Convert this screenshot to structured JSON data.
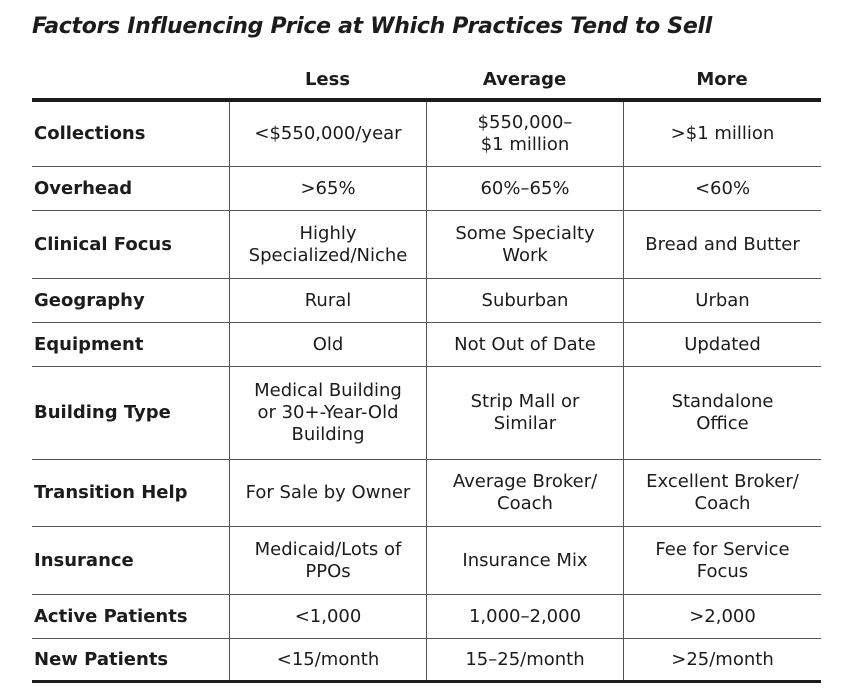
{
  "title": "Factors Influencing Price at Which Practices Tend to Sell",
  "columns": [
    "Less",
    "Average",
    "More"
  ],
  "rows": [
    {
      "label": "Collections",
      "values": [
        "<$550,000/year",
        "$550,000–\n$1 million",
        ">$1 million"
      ]
    },
    {
      "label": "Overhead",
      "values": [
        ">65%",
        "60%–65%",
        "<60%"
      ]
    },
    {
      "label": "Clinical Focus",
      "values": [
        "Highly\nSpecialized/Niche",
        "Some Specialty\nWork",
        "Bread and Butter"
      ]
    },
    {
      "label": "Geography",
      "values": [
        "Rural",
        "Suburban",
        "Urban"
      ]
    },
    {
      "label": "Equipment",
      "values": [
        "Old",
        "Not Out of Date",
        "Updated"
      ]
    },
    {
      "label": "Building Type",
      "values": [
        "Medical Building\nor 30+-Year-Old\nBuilding",
        "Strip Mall or\nSimilar",
        "Standalone\nOffice"
      ]
    },
    {
      "label": "Transition Help",
      "values": [
        "For Sale by Owner",
        "Average Broker/\nCoach",
        "Excellent Broker/\nCoach"
      ]
    },
    {
      "label": "Insurance",
      "values": [
        "Medicaid/Lots of\nPPOs",
        "Insurance Mix",
        "Fee for Service\nFocus"
      ]
    },
    {
      "label": "Active Patients",
      "values": [
        "<1,000",
        "1,000–2,000",
        ">2,000"
      ]
    },
    {
      "label": "New Patients",
      "values": [
        "<15/month",
        "15–25/month",
        ">25/month"
      ]
    }
  ]
}
